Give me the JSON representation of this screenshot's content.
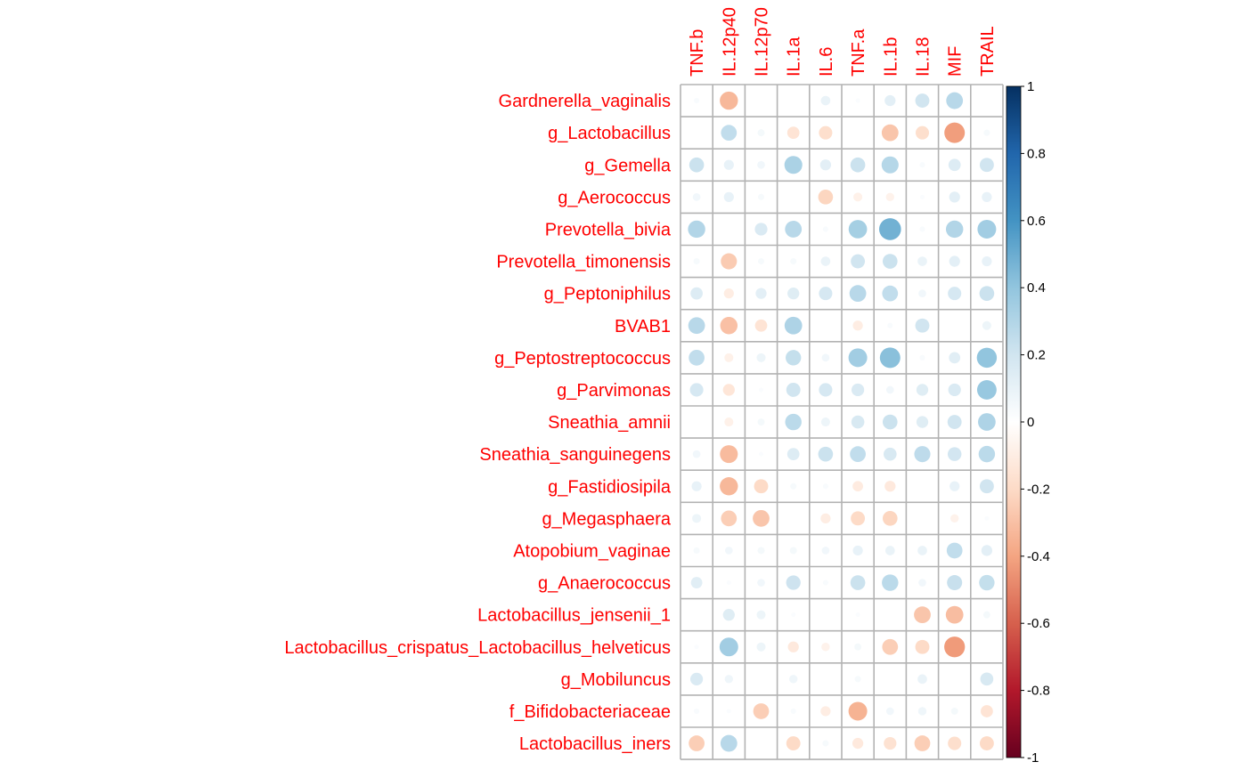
{
  "chart_data": {
    "type": "heatmap",
    "columns": [
      "TNF.b",
      "IL.12p40",
      "IL.12p70",
      "IL.1a",
      "IL.6",
      "TNF.a",
      "IL.1b",
      "IL.18",
      "MIF",
      "TRAIL"
    ],
    "rows": [
      "Gardnerella_vaginalis",
      "g_Lactobacillus",
      "g_Gemella",
      "g_Aerococcus",
      "Prevotella_bivia",
      "Prevotella_timonensis",
      "g_Peptoniphilus",
      "BVAB1",
      "g_Peptostreptococcus",
      "g_Parvimonas",
      "Sneathia_amnii",
      "Sneathia_sanguinegens",
      "g_Fastidiosipila",
      "g_Megasphaera",
      "Atopobium_vaginae",
      "g_Anaerococcus",
      "Lactobacillus_jensenii_1",
      "Lactobacillus_crispatus_Lactobacillus_helveticus",
      "g_Mobiluncus",
      "f_Bifidobacteriaceae",
      "Lactobacillus_iners"
    ],
    "values": [
      [
        0.03,
        -0.33,
        0,
        0,
        0.09,
        0.02,
        0.12,
        0.2,
        0.28,
        0
      ],
      [
        0,
        0.25,
        0.05,
        -0.15,
        -0.18,
        0,
        -0.28,
        -0.18,
        -0.42,
        0.04
      ],
      [
        0.22,
        0.1,
        0.06,
        0.32,
        0.12,
        0.22,
        0.29,
        0.03,
        0.15,
        0.2
      ],
      [
        0.06,
        0.1,
        0.04,
        0,
        -0.22,
        -0.08,
        -0.07,
        0.02,
        0.12,
        0.1
      ],
      [
        0.3,
        0,
        0.16,
        0.28,
        0.03,
        0.34,
        0.48,
        0.03,
        0.3,
        0.35
      ],
      [
        0.04,
        -0.26,
        0.04,
        0.04,
        0.09,
        0.2,
        0.22,
        0.09,
        0.12,
        0.1
      ],
      [
        0.15,
        -0.1,
        0.12,
        0.14,
        0.18,
        0.28,
        0.25,
        0.06,
        0.18,
        0.22
      ],
      [
        0.28,
        -0.3,
        -0.15,
        0.31,
        0,
        -0.1,
        0.03,
        0.2,
        0,
        0.08
      ],
      [
        0.25,
        -0.08,
        0.08,
        0.24,
        0.06,
        0.35,
        0.42,
        0.03,
        0.13,
        0.4
      ],
      [
        0.18,
        -0.14,
        0.02,
        0.2,
        0.18,
        0.16,
        0.06,
        0.14,
        0.16,
        0.38
      ],
      [
        0,
        -0.08,
        0.05,
        0.27,
        0.08,
        0.17,
        0.22,
        0.14,
        0.2,
        0.31
      ],
      [
        0.06,
        -0.32,
        0.02,
        0.15,
        0.22,
        0.25,
        0.17,
        0.26,
        0.19,
        0.27
      ],
      [
        0.1,
        -0.33,
        -0.2,
        0.04,
        0.03,
        -0.11,
        -0.12,
        0,
        0.1,
        0.2
      ],
      [
        0.08,
        -0.25,
        -0.28,
        0,
        -0.1,
        -0.2,
        -0.22,
        0,
        -0.07,
        0.02
      ],
      [
        0.04,
        0.06,
        0.05,
        0.05,
        0.06,
        0.1,
        0.09,
        0.09,
        0.25,
        0.12
      ],
      [
        0.13,
        0.02,
        0.06,
        0.21,
        0.03,
        0.22,
        0.27,
        0.06,
        0.23,
        0.24
      ],
      [
        0,
        0.14,
        0.08,
        0.02,
        0,
        0.02,
        0,
        -0.28,
        -0.31,
        0.05
      ],
      [
        0.02,
        0.35,
        0.08,
        -0.12,
        -0.07,
        0.05,
        -0.25,
        -0.2,
        -0.43,
        0
      ],
      [
        0.16,
        0.07,
        0,
        0.07,
        0,
        0.04,
        0,
        0.09,
        0,
        0.17
      ],
      [
        0.03,
        0.02,
        -0.25,
        0.03,
        -0.1,
        -0.35,
        0.06,
        0.07,
        0.05,
        -0.15
      ],
      [
        -0.25,
        0.28,
        0,
        -0.2,
        0.04,
        -0.12,
        -0.16,
        -0.25,
        -0.18,
        -0.2
      ]
    ],
    "colorbar": {
      "range": [
        -1,
        1
      ],
      "ticks": [
        "1",
        "0.8",
        "0.6",
        "0.4",
        "0.2",
        "0",
        "-0.2",
        "-0.4",
        "-0.6",
        "-0.8",
        "-1"
      ]
    },
    "label_color": "#ff0000",
    "grid_color": "#b3b3b3",
    "palette": [
      "#67001f",
      "#b2182b",
      "#d6604d",
      "#f4a582",
      "#fddbc7",
      "#ffffff",
      "#d1e5f0",
      "#92c5de",
      "#4393c3",
      "#2166ac",
      "#053061"
    ]
  }
}
